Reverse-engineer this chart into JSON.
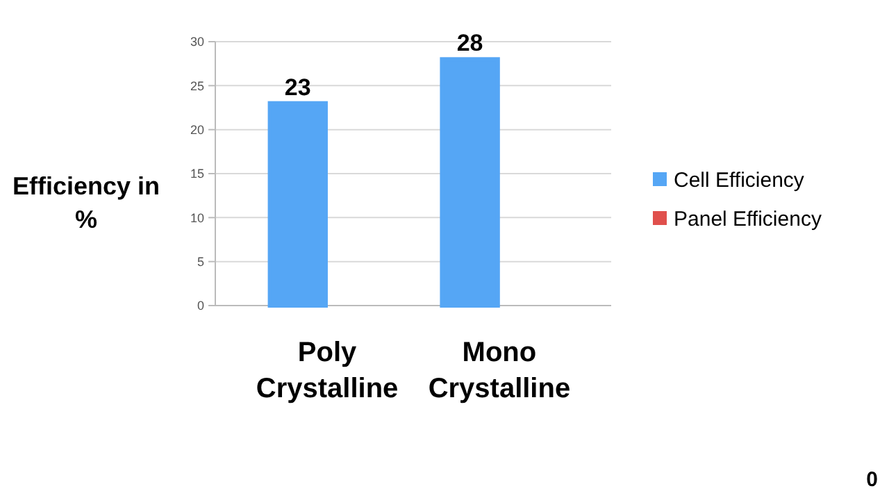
{
  "chart_data": {
    "type": "bar",
    "ylabel": "Efficiency in %",
    "categories": [
      "Poly Crystalline",
      "Mono Crystalline"
    ],
    "series": [
      {
        "name": "Cell Efficiency",
        "color": "#55a6f5",
        "values": [
          23,
          28
        ],
        "value_labels": [
          "23",
          "28"
        ]
      },
      {
        "name": "Panel Efficiency",
        "color": "#e0504c",
        "values": [
          0,
          0
        ],
        "value_labels": [
          null,
          null
        ]
      }
    ],
    "ylim": [
      0,
      30
    ],
    "yticks": [
      0,
      5,
      10,
      15,
      20,
      25,
      30
    ],
    "grid": "y",
    "legend": "right",
    "annotations": [
      "0"
    ]
  }
}
